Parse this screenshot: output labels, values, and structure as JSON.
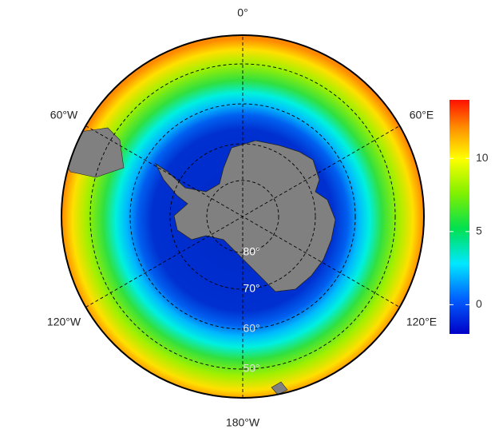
{
  "map": {
    "longitude_labels": [
      "0°",
      "60°E",
      "120°E",
      "180°W",
      "120°W",
      "60°W"
    ],
    "latitude_labels": [
      "80°",
      "70°",
      "60°",
      "50°"
    ],
    "colorbar": {
      "lim": [
        -2,
        14
      ],
      "ticks": [
        0,
        5,
        10
      ]
    }
  }
}
